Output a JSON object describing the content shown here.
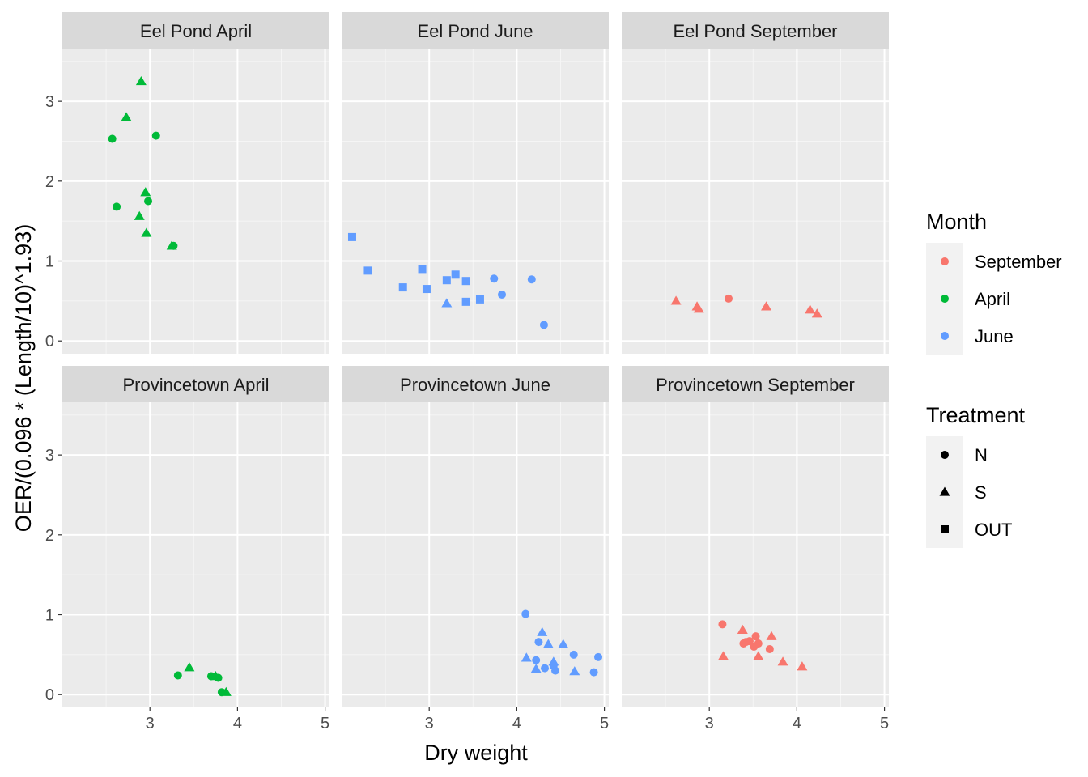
{
  "chart_data": {
    "type": "scatter",
    "xlabel": "Dry weight",
    "ylabel": "OER/(0.096 * (Length/10)^1.93)",
    "xlim": [
      2.0,
      5.05
    ],
    "ylim": [
      -0.16,
      3.66
    ],
    "x_ticks": [
      "3",
      "4",
      "5"
    ],
    "y_ticks": [
      "0",
      "1",
      "2",
      "3"
    ],
    "grid": true,
    "legend_position": "right",
    "colors": {
      "September": "#F8766D",
      "April": "#00BA38",
      "June": "#619CFF"
    },
    "legends": [
      {
        "title": "Month",
        "items": [
          {
            "label": "September",
            "color": "#F8766D"
          },
          {
            "label": "April",
            "color": "#00BA38"
          },
          {
            "label": "June",
            "color": "#619CFF"
          }
        ]
      },
      {
        "title": "Treatment",
        "items": [
          {
            "label": "N",
            "shape": "circle"
          },
          {
            "label": "S",
            "shape": "triangle"
          },
          {
            "label": "OUT",
            "shape": "square"
          }
        ]
      }
    ],
    "panels": [
      {
        "title": "Eel Pond April",
        "month": "April",
        "points": [
          {
            "x": 2.9,
            "y": 3.25,
            "t": "S"
          },
          {
            "x": 2.73,
            "y": 2.8,
            "t": "S"
          },
          {
            "x": 2.57,
            "y": 2.53,
            "t": "N"
          },
          {
            "x": 3.07,
            "y": 2.57,
            "t": "N"
          },
          {
            "x": 2.95,
            "y": 1.86,
            "t": "S"
          },
          {
            "x": 2.98,
            "y": 1.75,
            "t": "N"
          },
          {
            "x": 2.62,
            "y": 1.68,
            "t": "N"
          },
          {
            "x": 2.88,
            "y": 1.56,
            "t": "S"
          },
          {
            "x": 2.96,
            "y": 1.35,
            "t": "S"
          },
          {
            "x": 3.25,
            "y": 1.19,
            "t": "S"
          },
          {
            "x": 3.27,
            "y": 1.19,
            "t": "N"
          }
        ]
      },
      {
        "title": "Eel Pond June",
        "month": "June",
        "points": [
          {
            "x": 2.12,
            "y": 1.3,
            "t": "OUT"
          },
          {
            "x": 2.3,
            "y": 0.88,
            "t": "OUT"
          },
          {
            "x": 2.92,
            "y": 0.9,
            "t": "OUT"
          },
          {
            "x": 3.3,
            "y": 0.83,
            "t": "OUT"
          },
          {
            "x": 3.2,
            "y": 0.76,
            "t": "OUT"
          },
          {
            "x": 3.42,
            "y": 0.75,
            "t": "OUT"
          },
          {
            "x": 2.7,
            "y": 0.67,
            "t": "OUT"
          },
          {
            "x": 2.97,
            "y": 0.65,
            "t": "OUT"
          },
          {
            "x": 3.42,
            "y": 0.49,
            "t": "OUT"
          },
          {
            "x": 3.58,
            "y": 0.52,
            "t": "OUT"
          },
          {
            "x": 3.2,
            "y": 0.47,
            "t": "S"
          },
          {
            "x": 3.74,
            "y": 0.78,
            "t": "N"
          },
          {
            "x": 4.17,
            "y": 0.77,
            "t": "N"
          },
          {
            "x": 3.83,
            "y": 0.58,
            "t": "N"
          },
          {
            "x": 4.31,
            "y": 0.2,
            "t": "N"
          }
        ]
      },
      {
        "title": "Eel Pond September",
        "month": "September",
        "points": [
          {
            "x": 2.62,
            "y": 0.5,
            "t": "S"
          },
          {
            "x": 2.86,
            "y": 0.43,
            "t": "S"
          },
          {
            "x": 2.88,
            "y": 0.4,
            "t": "S"
          },
          {
            "x": 3.22,
            "y": 0.53,
            "t": "N"
          },
          {
            "x": 3.65,
            "y": 0.43,
            "t": "S"
          },
          {
            "x": 4.15,
            "y": 0.39,
            "t": "S"
          },
          {
            "x": 4.23,
            "y": 0.34,
            "t": "S"
          }
        ]
      },
      {
        "title": "Provincetown April",
        "month": "April",
        "points": [
          {
            "x": 3.32,
            "y": 0.24,
            "t": "N"
          },
          {
            "x": 3.45,
            "y": 0.34,
            "t": "S"
          },
          {
            "x": 3.7,
            "y": 0.23,
            "t": "N"
          },
          {
            "x": 3.75,
            "y": 0.23,
            "t": "S"
          },
          {
            "x": 3.78,
            "y": 0.21,
            "t": "N"
          },
          {
            "x": 3.82,
            "y": 0.03,
            "t": "N"
          },
          {
            "x": 3.87,
            "y": 0.03,
            "t": "S"
          }
        ]
      },
      {
        "title": "Provincetown June",
        "month": "June",
        "points": [
          {
            "x": 4.1,
            "y": 1.01,
            "t": "N"
          },
          {
            "x": 4.29,
            "y": 0.78,
            "t": "S"
          },
          {
            "x": 4.25,
            "y": 0.66,
            "t": "N"
          },
          {
            "x": 4.36,
            "y": 0.63,
            "t": "S"
          },
          {
            "x": 4.53,
            "y": 0.63,
            "t": "S"
          },
          {
            "x": 4.65,
            "y": 0.5,
            "t": "N"
          },
          {
            "x": 4.93,
            "y": 0.47,
            "t": "N"
          },
          {
            "x": 4.11,
            "y": 0.46,
            "t": "S"
          },
          {
            "x": 4.22,
            "y": 0.43,
            "t": "N"
          },
          {
            "x": 4.42,
            "y": 0.41,
            "t": "S"
          },
          {
            "x": 4.42,
            "y": 0.36,
            "t": "N"
          },
          {
            "x": 4.32,
            "y": 0.33,
            "t": "N"
          },
          {
            "x": 4.22,
            "y": 0.32,
            "t": "S"
          },
          {
            "x": 4.44,
            "y": 0.3,
            "t": "N"
          },
          {
            "x": 4.66,
            "y": 0.29,
            "t": "S"
          },
          {
            "x": 4.88,
            "y": 0.28,
            "t": "N"
          }
        ]
      },
      {
        "title": "Provincetown September",
        "month": "September",
        "points": [
          {
            "x": 3.15,
            "y": 0.88,
            "t": "N"
          },
          {
            "x": 3.38,
            "y": 0.81,
            "t": "S"
          },
          {
            "x": 3.71,
            "y": 0.73,
            "t": "S"
          },
          {
            "x": 3.53,
            "y": 0.73,
            "t": "N"
          },
          {
            "x": 3.46,
            "y": 0.67,
            "t": "N"
          },
          {
            "x": 3.39,
            "y": 0.64,
            "t": "N"
          },
          {
            "x": 3.42,
            "y": 0.66,
            "t": "N"
          },
          {
            "x": 3.56,
            "y": 0.64,
            "t": "N"
          },
          {
            "x": 3.51,
            "y": 0.6,
            "t": "N"
          },
          {
            "x": 3.69,
            "y": 0.57,
            "t": "N"
          },
          {
            "x": 3.16,
            "y": 0.48,
            "t": "S"
          },
          {
            "x": 3.56,
            "y": 0.48,
            "t": "S"
          },
          {
            "x": 3.84,
            "y": 0.41,
            "t": "S"
          },
          {
            "x": 4.06,
            "y": 0.35,
            "t": "S"
          }
        ]
      }
    ]
  }
}
